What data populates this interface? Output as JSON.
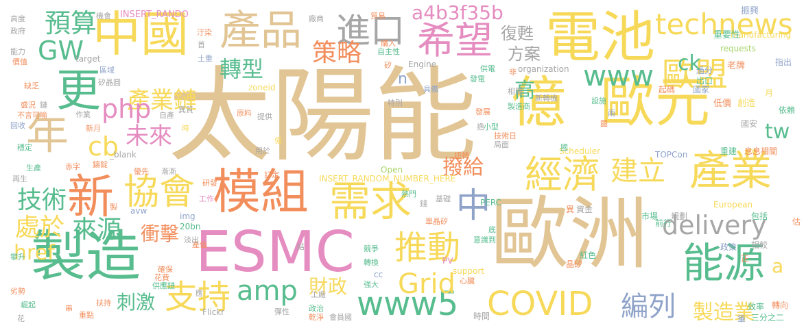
{
  "palette": {
    "tan": "#E2C594",
    "yellow": "#F7D95A",
    "green": "#57BC8E",
    "orange": "#F28E5C",
    "pink": "#E58CC0",
    "blue": "#8FA3C9",
    "gray": "#A6A6A6",
    "lime": "#A8D46B"
  },
  "words": [
    {
      "text": "太陽能",
      "color": "#E2C594"
    },
    {
      "text": "歐洲",
      "color": "#E2C594"
    },
    {
      "text": "電池",
      "color": "#F7D95A"
    },
    {
      "text": "億",
      "color": "#F7D95A"
    },
    {
      "text": "歐元",
      "color": "#F7D95A"
    },
    {
      "text": "中國",
      "color": "#F7D95A"
    },
    {
      "text": "製造",
      "color": "#57BC8E"
    },
    {
      "text": "ESMC",
      "color": "#E58CC0"
    },
    {
      "text": "模組",
      "color": "#F28E5C"
    },
    {
      "text": "產品",
      "color": "#E2C594"
    },
    {
      "text": "需求",
      "color": "#F7D95A"
    },
    {
      "text": "產業",
      "color": "#F7D95A"
    },
    {
      "text": "能源",
      "color": "#57BC8E"
    },
    {
      "text": "年",
      "color": "#E2C594"
    },
    {
      "text": "更",
      "color": "#57BC8E"
    },
    {
      "text": "新",
      "color": "#F28E5C"
    },
    {
      "text": "協會",
      "color": "#F7D95A"
    },
    {
      "text": "COVID",
      "color": "#F7D95A"
    },
    {
      "text": "www5",
      "color": "#57BC8E"
    },
    {
      "text": "希望",
      "color": "#E58CC0"
    },
    {
      "text": "經濟",
      "color": "#F7D95A"
    },
    {
      "text": "支持",
      "color": "#F7D95A"
    },
    {
      "text": "推動",
      "color": "#F7D95A"
    },
    {
      "text": "歐盟",
      "color": "#F7D95A"
    },
    {
      "text": "technews",
      "color": "#F7D95A"
    },
    {
      "text": "www",
      "color": "#57BC8E"
    },
    {
      "text": "delivery",
      "color": "#A6A6A6"
    },
    {
      "text": "進口",
      "color": "#A6A6A6"
    },
    {
      "text": "中",
      "color": "#8FA3C9"
    },
    {
      "text": "預算",
      "color": "#57BC8E"
    },
    {
      "text": "GW",
      "color": "#57BC8E"
    },
    {
      "text": "策略",
      "color": "#F28E5C"
    },
    {
      "text": "轉型",
      "color": "#57BC8E"
    },
    {
      "text": "產業鏈",
      "color": "#F7D95A"
    },
    {
      "text": "php",
      "color": "#E58CC0"
    },
    {
      "text": "cb",
      "color": "#F7D95A"
    },
    {
      "text": "未來",
      "color": "#E58CC0"
    },
    {
      "text": "技術",
      "color": "#57BC8E"
    },
    {
      "text": "處於",
      "color": "#F7D95A"
    },
    {
      "text": "來源",
      "color": "#57BC8E"
    },
    {
      "text": "衝擊",
      "color": "#F28E5C"
    },
    {
      "text": "刺激",
      "color": "#57BC8E"
    },
    {
      "text": "amp",
      "color": "#57BC8E"
    },
    {
      "text": "財政",
      "color": "#F7D95A"
    },
    {
      "text": "Grid",
      "color": "#F7D95A"
    },
    {
      "text": "建立",
      "color": "#F7D95A"
    },
    {
      "text": "撥給",
      "color": "#F28E5C"
    },
    {
      "text": "編列",
      "color": "#8FA3C9"
    },
    {
      "text": "製造業",
      "color": "#F7D95A"
    },
    {
      "text": "a4b3f35b",
      "color": "#E58CC0"
    },
    {
      "text": "復甦",
      "color": "#A6A6A6"
    },
    {
      "text": "方案",
      "color": "#A6A6A6"
    },
    {
      "text": "高",
      "color": "#57BC8E"
    },
    {
      "text": "ck",
      "color": "#57BC8E"
    },
    {
      "text": "tw",
      "color": "#57BC8E"
    },
    {
      "text": "href",
      "color": "#F7D95A"
    },
    {
      "text": "n",
      "color": "#8FA3C9"
    },
    {
      "text": "a",
      "color": "#F7D95A"
    },
    {
      "text": "INSERT_RANDO",
      "color": "#E58CC0"
    },
    {
      "text": "INSERT_RANDOM_NUMBER_HERE",
      "color": "#F7D95A"
    },
    {
      "text": "manufacturing",
      "color": "#F7D95A"
    },
    {
      "text": "requests",
      "color": "#A8D46B"
    },
    {
      "text": "organization",
      "color": "#A6A6A6"
    },
    {
      "text": "zoneid",
      "color": "#F7D95A"
    },
    {
      "text": "Engine",
      "color": "#A6A6A6"
    },
    {
      "text": "Scheduler",
      "color": "#F7D95A"
    },
    {
      "text": "TOPCon",
      "color": "#8FA3C9"
    },
    {
      "text": "European",
      "color": "#F7D95A"
    },
    {
      "text": "Open",
      "color": "#A8D46B"
    },
    {
      "text": "PERC",
      "color": "#57BC8E"
    },
    {
      "text": "Flickr",
      "color": "#A6A6A6"
    },
    {
      "text": "support",
      "color": "#F7D95A"
    },
    {
      "text": "target",
      "color": "#A6A6A6"
    },
    {
      "text": "_blank",
      "color": "#A6A6A6"
    },
    {
      "text": "avw",
      "color": "#8FA3C9"
    },
    {
      "text": "img",
      "color": "#8FA3C9"
    },
    {
      "text": "20bn",
      "color": "#57BC8E"
    },
    {
      "text": "src",
      "color": "#F7D95A"
    },
    {
      "text": "PV",
      "color": "#E58CC0"
    },
    {
      "text": "cc",
      "color": "#8FA3C9"
    },
    {
      "text": "機會",
      "color": "#A6A6A6"
    },
    {
      "text": "貿易",
      "color": "#F28E5C"
    },
    {
      "text": "振興",
      "color": "#8FA3C9"
    },
    {
      "text": "重要性",
      "color": "#57BC8E"
    },
    {
      "text": "指出",
      "color": "#8FA3C9"
    },
    {
      "text": "老牌",
      "color": "#F28E5C"
    },
    {
      "text": "國家",
      "color": "#8FA3C9"
    },
    {
      "text": "出口",
      "color": "#57BC8E"
    },
    {
      "text": "起碼",
      "color": "#F28E5C"
    },
    {
      "text": "過分",
      "color": "#8FA3C9"
    },
    {
      "text": "月",
      "color": "#F7D95A"
    },
    {
      "text": "依賴",
      "color": "#57BC8E"
    },
    {
      "text": "低價",
      "color": "#F28E5C"
    },
    {
      "text": "創造",
      "color": "#F7D95A"
    },
    {
      "text": "國安",
      "color": "#A6A6A6"
    },
    {
      "text": "重建",
      "color": "#57BC8E"
    },
    {
      "text": "息息相關",
      "color": "#F28E5C"
    },
    {
      "text": "市場",
      "color": "#57BC8E"
    },
    {
      "text": "規劃",
      "color": "#A6A6A6"
    },
    {
      "text": "前行",
      "color": "#57BC8E"
    },
    {
      "text": "包括",
      "color": "#57BC8E"
    },
    {
      "text": "估",
      "color": "#F28E5C"
    },
    {
      "text": "政策",
      "color": "#8FA3C9"
    },
    {
      "text": "正",
      "color": "#F28E5C"
    },
    {
      "text": "相較",
      "color": "#A6A6A6"
    },
    {
      "text": "效率",
      "color": "#57BC8E"
    },
    {
      "text": "轉向",
      "color": "#F28E5C"
    },
    {
      "text": "三分之二",
      "color": "#57BC8E"
    },
    {
      "text": "筆",
      "color": "#8FA3C9"
    },
    {
      "text": "時間",
      "color": "#A6A6A6"
    },
    {
      "text": "晶矽",
      "color": "#F28E5C"
    },
    {
      "text": "紅色",
      "color": "#57BC8E"
    },
    {
      "text": "異",
      "color": "#F28E5C"
    },
    {
      "text": "資金",
      "color": "#A6A6A6"
    },
    {
      "text": "高度",
      "color": "#A6A6A6"
    },
    {
      "text": "政府",
      "color": "#A6A6A6"
    },
    {
      "text": "能力",
      "color": "#A6A6A6"
    },
    {
      "text": "價值",
      "color": "#F28E5C"
    },
    {
      "text": "缺乏",
      "color": "#F28E5C"
    },
    {
      "text": "盛況",
      "color": "#F28E5C"
    },
    {
      "text": "不言可喻",
      "color": "#F28E5C"
    },
    {
      "text": "回收",
      "color": "#8FA3C9"
    },
    {
      "text": "穩定",
      "color": "#57BC8E"
    },
    {
      "text": "生產",
      "color": "#57BC8E"
    },
    {
      "text": "再生",
      "color": "#A6A6A6"
    },
    {
      "text": "攀升",
      "color": "#57BC8E"
    },
    {
      "text": "劣勢",
      "color": "#F28E5C"
    },
    {
      "text": "崛起",
      "color": "#57BC8E"
    },
    {
      "text": "花",
      "color": "#A6A6A6"
    },
    {
      "text": "串",
      "color": "#F28E5C"
    },
    {
      "text": "重點",
      "color": "#F28E5C"
    },
    {
      "text": "扶持",
      "color": "#F28E5C"
    },
    {
      "text": "供應鏈",
      "color": "#57BC8E"
    },
    {
      "text": "花費",
      "color": "#F28E5C"
    },
    {
      "text": "確保",
      "color": "#F28E5C"
    },
    {
      "text": "產值",
      "color": "#F28E5C"
    },
    {
      "text": "淡出",
      "color": "#A6A6A6"
    },
    {
      "text": "工作",
      "color": "#E58CC0"
    },
    {
      "text": "研發",
      "color": "#F28E5C"
    },
    {
      "text": "漸漸",
      "color": "#A6A6A6"
    },
    {
      "text": "優先",
      "color": "#F28E5C"
    },
    {
      "text": "鑄錠",
      "color": "#F28E5C"
    },
    {
      "text": "赤字",
      "color": "#F28E5C"
    },
    {
      "text": "作業",
      "color": "#A6A6A6"
    },
    {
      "text": "新月",
      "color": "#F28E5C"
    },
    {
      "text": "時",
      "color": "#F7D95A"
    },
    {
      "text": "鏈",
      "color": "#A6A6A6"
    },
    {
      "text": "矽晶圓",
      "color": "#A6A6A6"
    },
    {
      "text": "區域",
      "color": "#8FA3C9"
    },
    {
      "text": "土重",
      "color": "#8FA3C9"
    },
    {
      "text": "首",
      "color": "#A6A6A6"
    },
    {
      "text": "汙染",
      "color": "#F28E5C"
    },
    {
      "text": "自產",
      "color": "#A6A6A6"
    },
    {
      "text": "異質",
      "color": "#A6A6A6"
    },
    {
      "text": "原料",
      "color": "#F28E5C"
    },
    {
      "text": "提供",
      "color": "#A6A6A6"
    },
    {
      "text": "用於",
      "color": "#A6A6A6"
    },
    {
      "text": "訂定",
      "color": "#F28E5C"
    },
    {
      "text": "特別",
      "color": "#A6A6A6"
    },
    {
      "text": "購入",
      "color": "#F28E5C"
    },
    {
      "text": "自主性",
      "color": "#57BC8E"
    },
    {
      "text": "矽",
      "color": "#F28E5C"
    },
    {
      "text": "具備",
      "color": "#8FA3C9"
    },
    {
      "text": "發展",
      "color": "#F28E5C"
    },
    {
      "text": "製造商",
      "color": "#57BC8E"
    },
    {
      "text": "小型",
      "color": "#57BC8E"
    },
    {
      "text": "技術日",
      "color": "#F28E5C"
    },
    {
      "text": "局面",
      "color": "#A6A6A6"
    },
    {
      "text": "扭轉",
      "color": "#F28E5C"
    },
    {
      "text": "熱門",
      "color": "#57BC8E"
    },
    {
      "text": "基礎",
      "color": "#A6A6A6"
    },
    {
      "text": "錢",
      "color": "#A6A6A6"
    },
    {
      "text": "單晶矽",
      "color": "#F28E5C"
    },
    {
      "text": "底",
      "color": "#57BC8E"
    },
    {
      "text": "意識到",
      "color": "#57BC8E"
    },
    {
      "text": "競爭",
      "color": "#57BC8E"
    },
    {
      "text": "轉換",
      "color": "#57BC8E"
    },
    {
      "text": "強大",
      "color": "#57BC8E"
    },
    {
      "text": "心臟",
      "color": "#F28E5C"
    },
    {
      "text": "會員國",
      "color": "#A6A6A6"
    },
    {
      "text": "乾淨",
      "color": "#F28E5C"
    },
    {
      "text": "彈性",
      "color": "#A6A6A6"
    },
    {
      "text": "政治",
      "color": "#57BC8E"
    },
    {
      "text": "工廠",
      "color": "#A6A6A6"
    },
    {
      "text": "廠商",
      "color": "#A6A6A6"
    },
    {
      "text": "供電",
      "color": "#57BC8E"
    },
    {
      "text": "非",
      "color": "#F28E5C"
    },
    {
      "text": "相關",
      "color": "#A6A6A6"
    },
    {
      "text": "新轉機",
      "color": "#A6A6A6"
    },
    {
      "text": "設施",
      "color": "#57BC8E"
    },
    {
      "text": "兩",
      "color": "#8FA3C9"
    },
    {
      "text": "圖",
      "color": "#F28E5C"
    },
    {
      "text": "國",
      "color": "#57BC8E"
    },
    {
      "text": "億",
      "color": "#F7D95A"
    },
    {
      "text": "發電",
      "color": "#57BC8E"
    },
    {
      "text": "擔",
      "color": "#A6A6A6"
    },
    {
      "text": "結",
      "color": "#A6A6A6"
    },
    {
      "text": "應",
      "color": "#A6A6A6"
    },
    {
      "text": "製",
      "color": "#F28E5C"
    }
  ]
}
